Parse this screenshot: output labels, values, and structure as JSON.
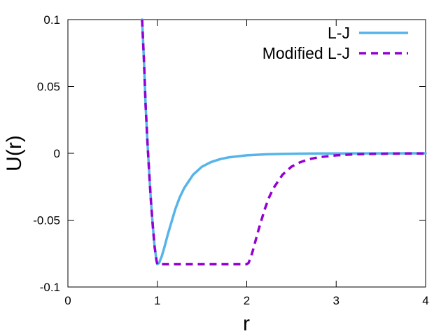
{
  "chart_data": {
    "type": "line",
    "title": "",
    "xlabel": "r",
    "ylabel": "U(r)",
    "xlim": [
      0,
      4
    ],
    "ylim": [
      -0.1,
      0.1
    ],
    "x_ticks": [
      0,
      1,
      2,
      3,
      4
    ],
    "x_tick_labels": [
      "0",
      "1",
      "2",
      "3",
      "4"
    ],
    "y_ticks": [
      -0.1,
      -0.05,
      0,
      0.05,
      0.1
    ],
    "y_tick_labels": [
      "-0.1",
      "-0.05",
      "0",
      "0.05",
      "0.1"
    ],
    "grid": false,
    "legend_position": "top-right",
    "series": [
      {
        "name": "L-J",
        "color": "#56b4e9",
        "style": "solid",
        "x": [
          0.83,
          0.85,
          0.87,
          0.89,
          0.91,
          0.93,
          0.95,
          0.97,
          0.99,
          1.0,
          1.02,
          1.05,
          1.08,
          1.12,
          1.16,
          1.2,
          1.25,
          1.3,
          1.35,
          1.4,
          1.5,
          1.6,
          1.7,
          1.8,
          2.0,
          2.2,
          2.4,
          2.6,
          2.8,
          3.0,
          3.5,
          4.0
        ],
        "y": [
          0.1,
          0.07,
          0.035,
          0.008,
          -0.016,
          -0.037,
          -0.055,
          -0.07,
          -0.08,
          -0.083,
          -0.082,
          -0.077,
          -0.07,
          -0.06,
          -0.051,
          -0.042,
          -0.033,
          -0.026,
          -0.021,
          -0.016,
          -0.01,
          -0.0066,
          -0.0044,
          -0.003,
          -0.0015,
          -0.0008,
          -0.00045,
          -0.00025,
          -0.00015,
          -0.0001,
          -5e-05,
          -2e-05
        ]
      },
      {
        "name": "Modified L-J",
        "color": "#9400d3",
        "style": "dashed",
        "x": [
          0.83,
          0.85,
          0.87,
          0.89,
          0.91,
          0.93,
          0.95,
          0.97,
          0.99,
          1.0,
          1.2,
          1.5,
          1.8,
          2.0,
          2.02,
          2.05,
          2.08,
          2.12,
          2.16,
          2.2,
          2.25,
          2.3,
          2.35,
          2.4,
          2.5,
          2.6,
          2.7,
          2.8,
          3.0,
          3.2,
          3.4,
          3.6,
          3.8,
          4.0
        ],
        "y": [
          0.1,
          0.07,
          0.035,
          0.008,
          -0.016,
          -0.037,
          -0.055,
          -0.07,
          -0.08,
          -0.083,
          -0.083,
          -0.083,
          -0.083,
          -0.083,
          -0.082,
          -0.077,
          -0.07,
          -0.06,
          -0.051,
          -0.042,
          -0.033,
          -0.026,
          -0.021,
          -0.016,
          -0.01,
          -0.0066,
          -0.0044,
          -0.003,
          -0.0015,
          -0.0008,
          -0.00045,
          -0.00025,
          -0.00015,
          -0.0001
        ]
      }
    ]
  }
}
